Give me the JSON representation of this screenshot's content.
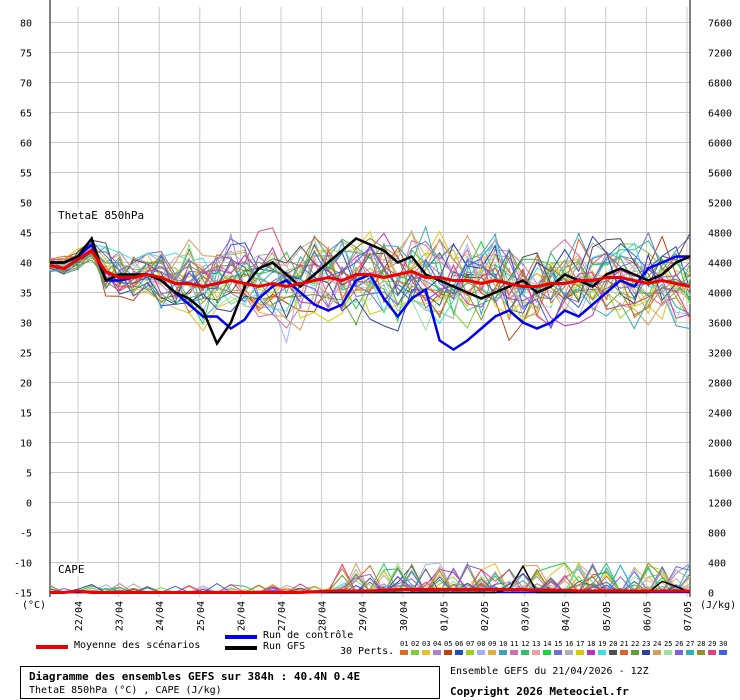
{
  "chart_data": {
    "type": "line",
    "title": "Diagramme des ensembles GEFS sur 384h : 40.4N 0.4E",
    "subtitle": "ThetaE 850hPa (°C) , CAPE (J/kg)",
    "panel_labels": [
      "ThetaE 850hPa",
      "CAPE"
    ],
    "left_axis": {
      "unit": "(°C)",
      "ticks": [
        80,
        75,
        70,
        65,
        60,
        55,
        50,
        45,
        40,
        35,
        30,
        25,
        20,
        15,
        10,
        5,
        0,
        -5,
        -10,
        -15
      ],
      "range": [
        -15,
        80
      ]
    },
    "right_axis": {
      "unit": "(J/kg)",
      "ticks": [
        7600,
        7200,
        6800,
        6400,
        6000,
        5600,
        5200,
        4800,
        4400,
        4000,
        3600,
        3200,
        2800,
        2400,
        2000,
        1600,
        1200,
        800,
        400,
        0
      ],
      "range": [
        0,
        7600
      ]
    },
    "x_ticks": [
      "22/04",
      "23/04",
      "24/04",
      "25/04",
      "26/04",
      "27/04",
      "28/04",
      "29/04",
      "30/04",
      "01/05",
      "02/05",
      "03/05",
      "04/05",
      "05/05",
      "06/05",
      "07/05"
    ],
    "grid": true,
    "theta_series": [
      {
        "name": "Moyenne des scénarios",
        "color": "#ee0000",
        "values": [
          39.5,
          39,
          40.5,
          42,
          38.5,
          37.5,
          37.5,
          38,
          37.5,
          36.5,
          36.5,
          36,
          36.5,
          37,
          36.5,
          36,
          36.5,
          36,
          36.5,
          37,
          37.5,
          37,
          38,
          38,
          37.5,
          38,
          38.5,
          37.5,
          37.5,
          37,
          37,
          36.5,
          37,
          36.5,
          36,
          36,
          36.5,
          36.5,
          37,
          37,
          37.5,
          37.5,
          37,
          36.5,
          37,
          36.5,
          36
        ]
      },
      {
        "name": "Run de contrôle",
        "color": "#0000ee",
        "values": [
          40,
          40,
          41,
          43,
          37,
          37,
          37.5,
          38,
          37,
          35,
          33,
          31,
          31,
          29,
          30.5,
          34,
          36,
          37,
          35,
          33,
          32,
          33,
          37,
          38,
          34,
          31,
          34,
          35.5,
          27,
          25.5,
          27,
          29,
          31,
          32,
          30,
          29,
          30,
          32,
          31,
          33,
          35,
          37,
          36,
          39,
          40,
          41,
          41
        ]
      },
      {
        "name": "Run GFS",
        "color": "#000000",
        "values": [
          40,
          40,
          41,
          44,
          37,
          38,
          38,
          38,
          37,
          35,
          34,
          32,
          26.5,
          30,
          36,
          39,
          40,
          38,
          36,
          38,
          40,
          42,
          44,
          43,
          42,
          40,
          41,
          38,
          37,
          36,
          35,
          34,
          35,
          36,
          37,
          35,
          36,
          38,
          37,
          36,
          38,
          39,
          38,
          37,
          38,
          40,
          41
        ]
      }
    ],
    "cape_series": [
      {
        "name": "Moyenne des scénarios",
        "color": "#ee0000",
        "values": [
          0,
          0,
          20,
          0,
          0,
          0,
          0,
          0,
          0,
          0,
          0,
          0,
          0,
          0,
          0,
          0,
          0,
          0,
          0,
          10,
          20,
          20,
          20,
          20,
          30,
          40,
          40,
          40,
          40,
          40,
          40,
          40,
          40,
          40,
          40,
          30,
          30,
          30,
          20,
          20,
          20,
          20,
          20,
          20,
          20,
          20,
          20
        ]
      },
      {
        "name": "Run de contrôle",
        "color": "#0000ee",
        "values": [
          0,
          0,
          0,
          0,
          0,
          0,
          0,
          0,
          0,
          0,
          0,
          0,
          0,
          0,
          0,
          0,
          0,
          0,
          0,
          0,
          0,
          0,
          0,
          0,
          0,
          0,
          0,
          0,
          0,
          0,
          0,
          0,
          0,
          0,
          0,
          0,
          0,
          0,
          0,
          0,
          0,
          0,
          0,
          0,
          0,
          0,
          0
        ]
      },
      {
        "name": "Run GFS",
        "color": "#000000",
        "values": [
          0,
          0,
          0,
          0,
          0,
          0,
          0,
          0,
          0,
          0,
          0,
          0,
          0,
          0,
          0,
          0,
          0,
          0,
          0,
          0,
          0,
          0,
          0,
          0,
          0,
          0,
          0,
          0,
          0,
          0,
          0,
          0,
          0,
          40,
          350,
          0,
          0,
          0,
          0,
          0,
          0,
          0,
          0,
          0,
          150,
          80,
          0
        ]
      }
    ],
    "perturbations": {
      "count_label": "30 Perts.",
      "labels": [
        "01",
        "02",
        "03",
        "04",
        "05",
        "06",
        "07",
        "08",
        "09",
        "10",
        "11",
        "12",
        "13",
        "14",
        "15",
        "16",
        "17",
        "18",
        "19",
        "20",
        "21",
        "22",
        "23",
        "24",
        "25",
        "26",
        "27",
        "28",
        "29",
        "30"
      ],
      "colors": [
        "#d96c1d",
        "#7fcf3a",
        "#e8c12a",
        "#b080d0",
        "#c04010",
        "#2050c0",
        "#9fd020",
        "#a0b0ff",
        "#e0b040",
        "#40a0c0",
        "#d070b0",
        "#30c070",
        "#f0a0a0",
        "#20d040",
        "#7070d0",
        "#b0b0b0",
        "#d0d000",
        "#c030c0",
        "#40e0e0",
        "#505050",
        "#e06030",
        "#60a030",
        "#3040a0",
        "#d0a060",
        "#a0e0a0",
        "#8060e0",
        "#30b0b0",
        "#909030",
        "#e04080",
        "#4060e0"
      ]
    }
  },
  "legend": {
    "mean": "Moyenne des scénarios",
    "control": "Run de contrôle",
    "gfs": "Run GFS"
  },
  "footer": {
    "title": "Diagramme des ensembles GEFS sur 384h : 40.4N 0.4E",
    "subtitle": "ThetaE 850hPa (°C) , CAPE (J/kg)",
    "run": "Ensemble GEFS du 21/04/2026 - 12Z",
    "copyright": "Copyright 2026 Meteociel.fr"
  }
}
